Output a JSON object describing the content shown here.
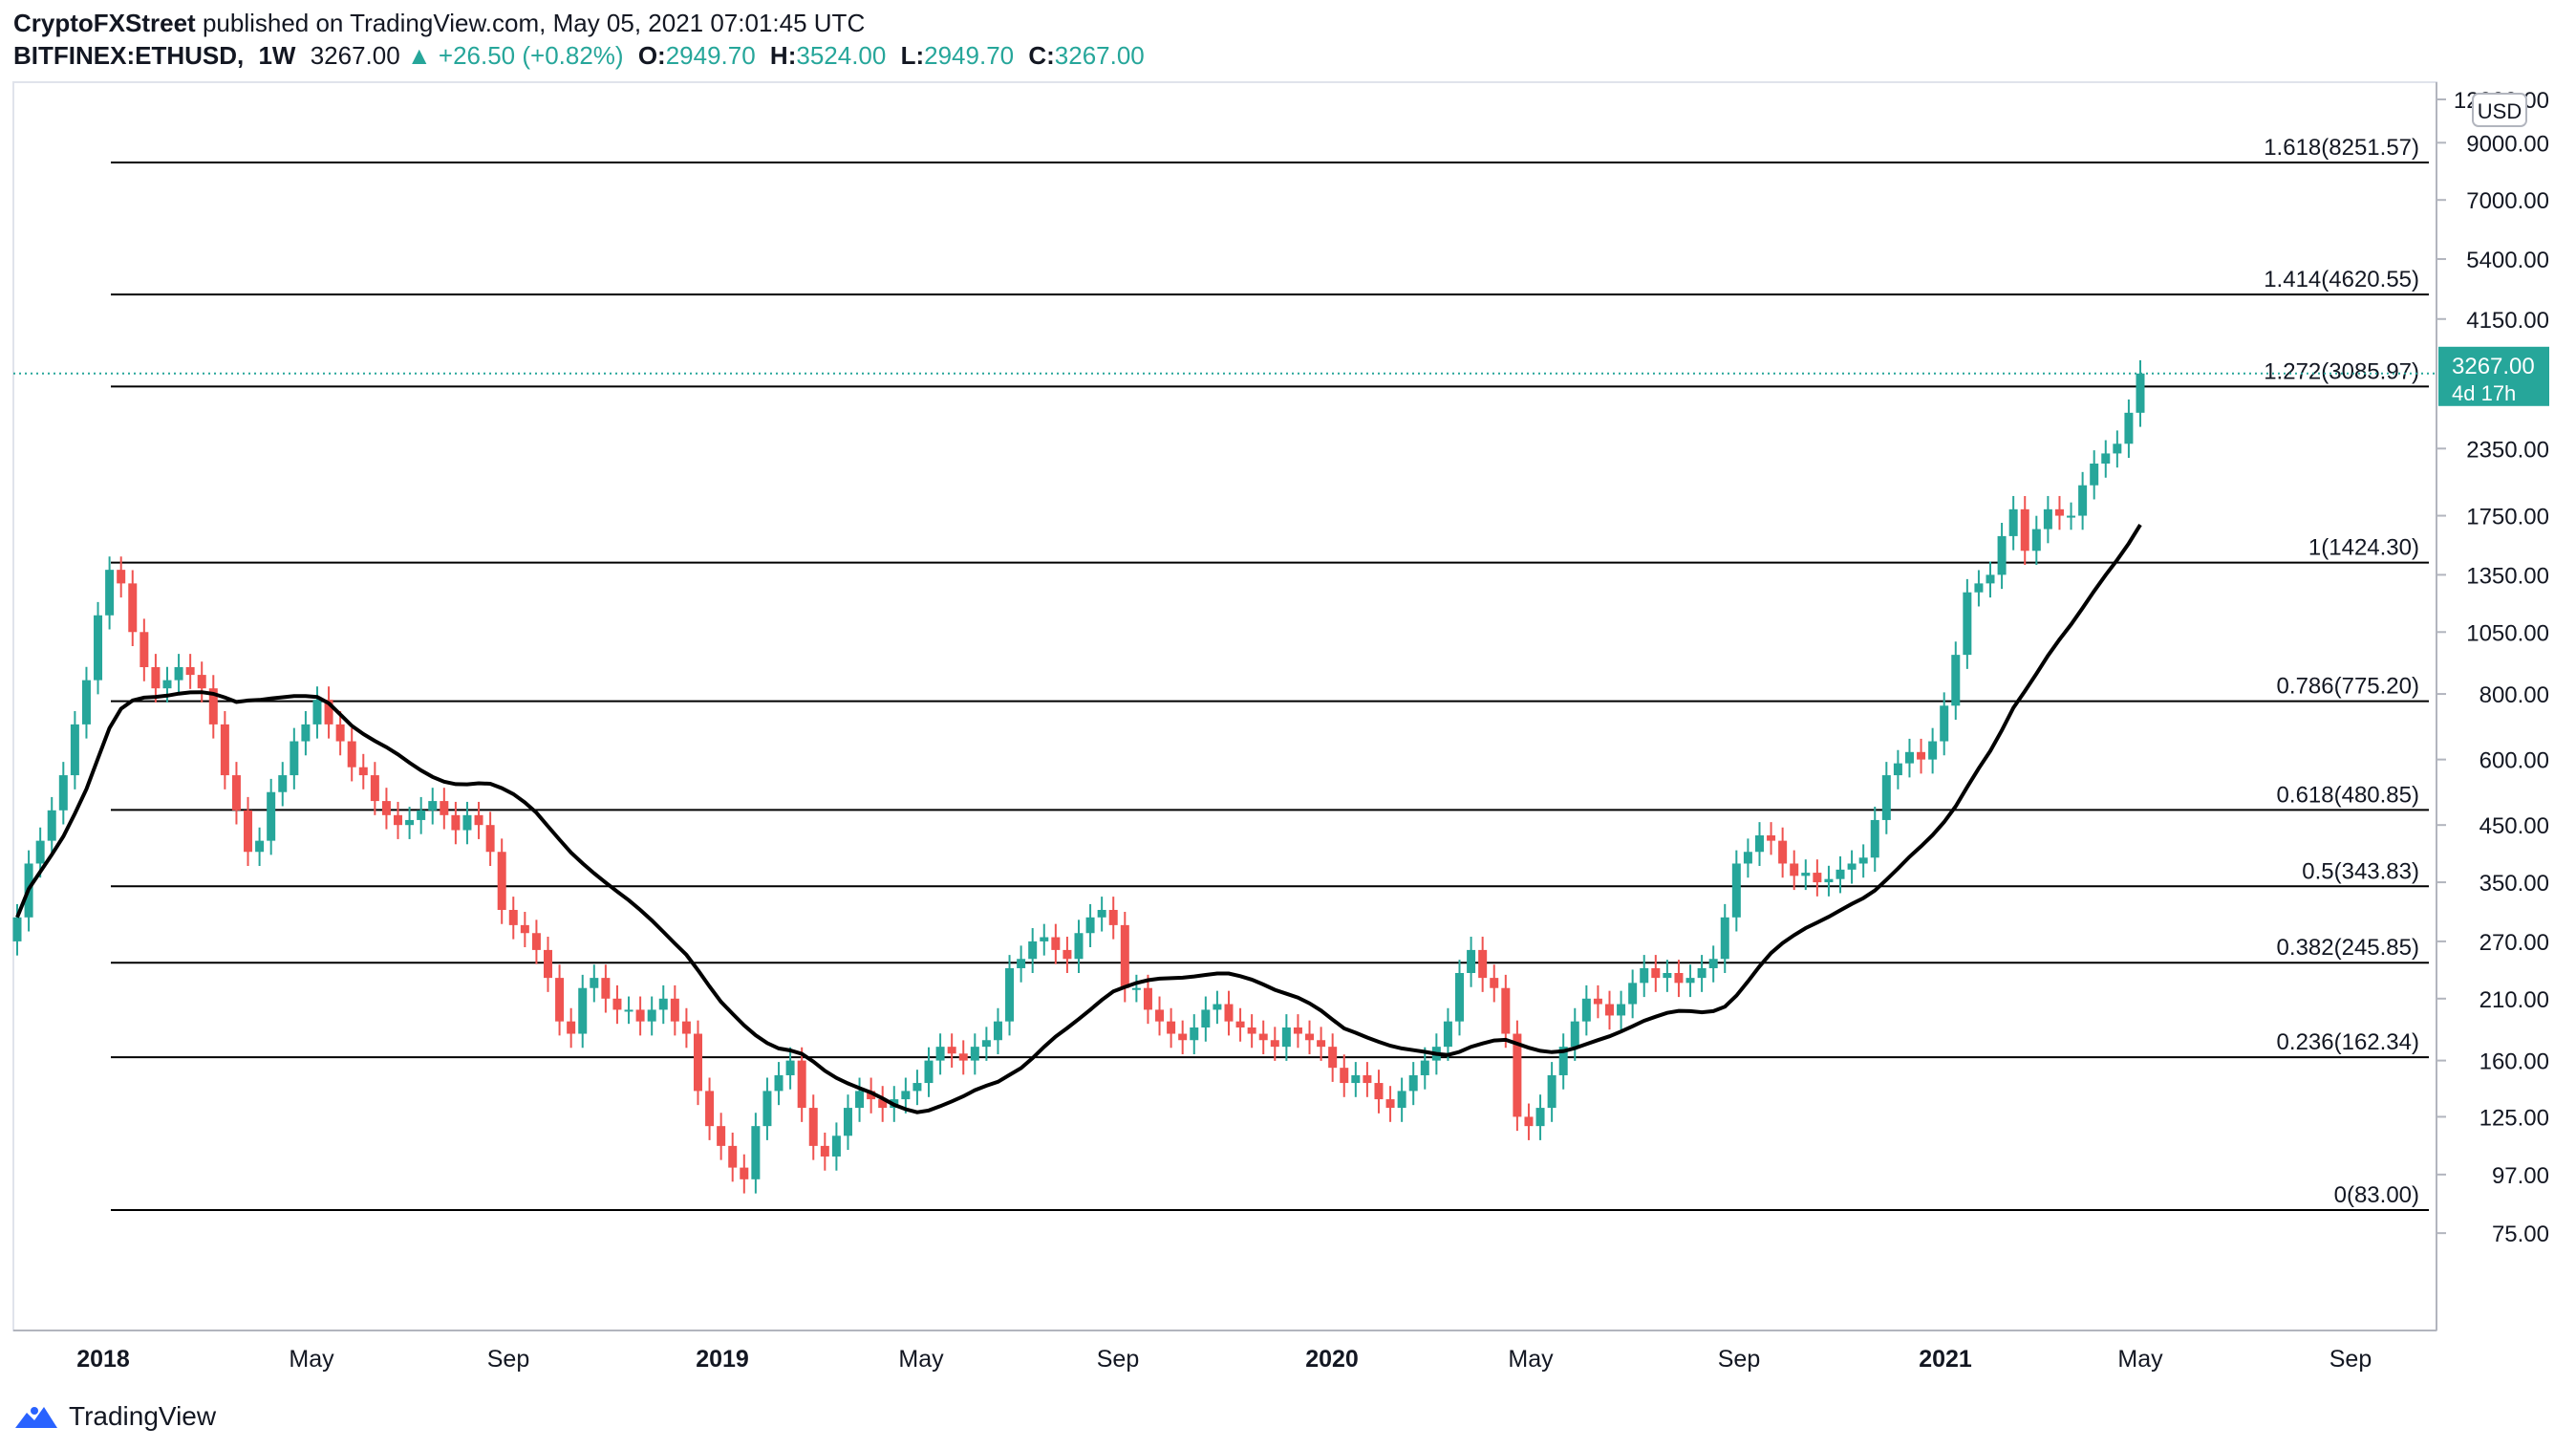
{
  "header": {
    "publisher": "CryptoFXStreet",
    "published_text": "published on TradingView.com, May 05, 2021 07:01:45 UTC",
    "symbol": "BITFINEX:ETHUSD,",
    "interval": "1W",
    "last": "3267.00",
    "change": "▲ +26.50 (+0.82%)",
    "o_label": "O:",
    "o": "2949.70",
    "h_label": "H:",
    "h": "3524.00",
    "l_label": "L:",
    "l": "2949.70",
    "c_label": "C:",
    "c": "3267.00"
  },
  "footer": {
    "brand": "TradingView"
  },
  "chart_data": {
    "type": "candlestick",
    "scale": "log",
    "currency_badge": "USD",
    "y_ticks": [
      "12000.00",
      "9000.00",
      "7000.00",
      "5400.00",
      "4150.00",
      "2350.00",
      "1750.00",
      "1350.00",
      "1050.00",
      "800.00",
      "600.00",
      "450.00",
      "350.00",
      "270.00",
      "210.00",
      "160.00",
      "125.00",
      "97.00",
      "75.00"
    ],
    "x_ticks": [
      "2018",
      "May",
      "Sep",
      "2019",
      "May",
      "Sep",
      "2020",
      "May",
      "Sep",
      "2021",
      "May",
      "Sep"
    ],
    "price_label": {
      "price": "3267.00",
      "countdown": "4d 17h"
    },
    "fib_levels": [
      {
        "label": "1.618(8251.57)",
        "value": 8251.57
      },
      {
        "label": "1.414(4620.55)",
        "value": 4620.55
      },
      {
        "label": "1.272(3085.97)",
        "value": 3085.97
      },
      {
        "label": "1(1424.30)",
        "value": 1424.3
      },
      {
        "label": "0.786(775.20)",
        "value": 775.2
      },
      {
        "label": "0.618(480.85)",
        "value": 480.85
      },
      {
        "label": "0.5(343.83)",
        "value": 343.83
      },
      {
        "label": "0.382(245.85)",
        "value": 245.85
      },
      {
        "label": "0.236(162.34)",
        "value": 162.34
      },
      {
        "label": "0(83.00)",
        "value": 83.0
      }
    ],
    "current_price": 3267,
    "colors": {
      "up": "#26a69a",
      "down": "#ef5350",
      "ma": "#000000",
      "fib": "#000000",
      "price_line": "#26a69a"
    },
    "weekly_closes_approx": [
      300,
      380,
      420,
      480,
      560,
      700,
      850,
      1130,
      1380,
      1300,
      1050,
      900,
      820,
      850,
      900,
      870,
      820,
      700,
      560,
      480,
      400,
      420,
      520,
      560,
      650,
      700,
      780,
      700,
      650,
      580,
      560,
      500,
      470,
      450,
      460,
      480,
      500,
      470,
      440,
      470,
      450,
      400,
      310,
      290,
      280,
      260,
      230,
      190,
      180,
      220,
      230,
      210,
      200,
      200,
      190,
      200,
      210,
      190,
      180,
      140,
      120,
      110,
      100,
      95,
      120,
      140,
      150,
      160,
      130,
      110,
      105,
      115,
      130,
      140,
      135,
      130,
      135,
      140,
      145,
      160,
      170,
      165,
      160,
      170,
      175,
      190,
      240,
      250,
      270,
      275,
      260,
      250,
      280,
      300,
      310,
      290,
      220,
      220,
      200,
      190,
      180,
      175,
      185,
      200,
      205,
      190,
      185,
      180,
      175,
      170,
      185,
      180,
      175,
      170,
      155,
      145,
      150,
      145,
      135,
      130,
      140,
      150,
      160,
      170,
      190,
      235,
      260,
      230,
      220,
      180,
      125,
      120,
      130,
      150,
      170,
      190,
      210,
      205,
      195,
      205,
      225,
      240,
      230,
      235,
      225,
      230,
      240,
      250,
      300,
      380,
      400,
      430,
      420,
      380,
      360,
      365,
      350,
      355,
      370,
      380,
      390,
      460,
      560,
      590,
      620,
      600,
      650,
      760,
      950,
      1250,
      1300,
      1350,
      1600,
      1800,
      1500,
      1650,
      1800,
      1750,
      1750,
      2000,
      2200,
      2300,
      2400,
      2750,
      3267
    ]
  }
}
